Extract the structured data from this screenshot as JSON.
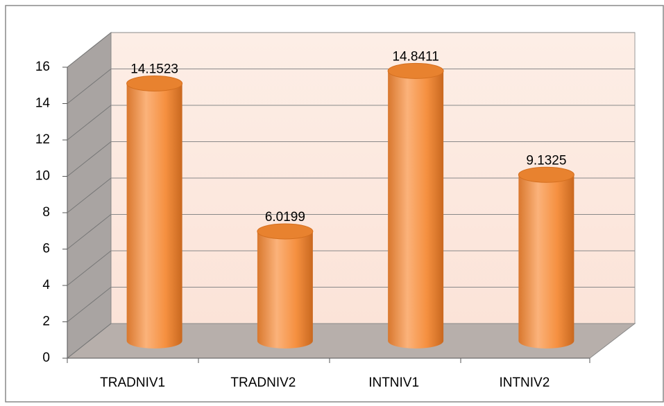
{
  "chart_data": {
    "type": "bar3d",
    "categories": [
      "TRADNIV1",
      "TRADNIV2",
      "INTNIV1",
      "INTNIV2"
    ],
    "values": [
      14.1523,
      6.0199,
      14.8411,
      9.1325
    ],
    "color": "#f79646",
    "ylim": [
      0,
      16
    ],
    "yticks": [
      0,
      2,
      4,
      6,
      8,
      10,
      12,
      14,
      16
    ],
    "grid": true
  }
}
